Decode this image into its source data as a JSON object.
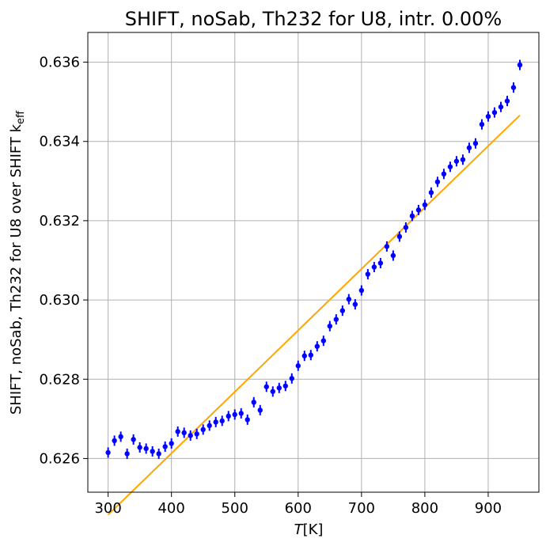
{
  "chart_data": {
    "type": "scatter",
    "title": "SHIFT, noSab, Th232 for U8, intr. 0.00%",
    "xlabel": "T[K]",
    "xlabel_parts": {
      "var": "T",
      "unit": "[K]"
    },
    "ylabel": "SHIFT, noSab, Th232 for U8 over SHIFT k_eff",
    "ylabel_parts": {
      "main": "SHIFT, noSab, Th232 for U8 over SHIFT k",
      "sub": "eff"
    },
    "xlim": [
      268,
      980
    ],
    "ylim": [
      0.62515,
      0.63675
    ],
    "x_ticks": [
      300,
      400,
      500,
      600,
      700,
      800,
      900
    ],
    "x_tick_labels": [
      "300",
      "400",
      "500",
      "600",
      "700",
      "800",
      "900"
    ],
    "y_ticks": [
      0.626,
      0.628,
      0.63,
      0.632,
      0.634,
      0.636
    ],
    "y_tick_labels": [
      "0.626",
      "0.628",
      "0.630",
      "0.632",
      "0.634",
      "0.636"
    ],
    "grid": true,
    "legend": "none",
    "series": [
      {
        "kind": "errorbar",
        "color": "#0000ff",
        "x": [
          300,
          310,
          320,
          330,
          340,
          350,
          360,
          370,
          380,
          390,
          400,
          410,
          420,
          430,
          440,
          450,
          460,
          470,
          480,
          490,
          500,
          510,
          520,
          530,
          540,
          550,
          560,
          570,
          580,
          590,
          600,
          610,
          620,
          630,
          640,
          650,
          660,
          670,
          680,
          690,
          700,
          710,
          720,
          730,
          740,
          750,
          760,
          770,
          780,
          790,
          800,
          810,
          820,
          830,
          840,
          850,
          860,
          870,
          880,
          890,
          900,
          910,
          920,
          930,
          940,
          950
        ],
        "y": [
          0.62615,
          0.62645,
          0.62655,
          0.62612,
          0.62648,
          0.62628,
          0.62625,
          0.62618,
          0.62612,
          0.6263,
          0.62638,
          0.62668,
          0.62665,
          0.62658,
          0.62662,
          0.62673,
          0.62683,
          0.62692,
          0.62695,
          0.62707,
          0.62711,
          0.62714,
          0.62698,
          0.62742,
          0.62722,
          0.62781,
          0.62769,
          0.62778,
          0.62783,
          0.62802,
          0.62834,
          0.62859,
          0.62861,
          0.62883,
          0.62897,
          0.62934,
          0.62951,
          0.62973,
          0.63002,
          0.62989,
          0.63024,
          0.63065,
          0.63083,
          0.63093,
          0.63135,
          0.63112,
          0.6316,
          0.63183,
          0.63212,
          0.63227,
          0.6324,
          0.63271,
          0.63298,
          0.63318,
          0.63336,
          0.6335,
          0.63354,
          0.63384,
          0.63395,
          0.63443,
          0.63463,
          0.63473,
          0.63487,
          0.63502,
          0.63536,
          0.63593
        ],
        "yerr": 0.00013
      },
      {
        "kind": "line",
        "color": "#ffa500",
        "x": [
          300,
          950
        ],
        "y": [
          0.62458,
          0.63466
        ]
      }
    ]
  }
}
